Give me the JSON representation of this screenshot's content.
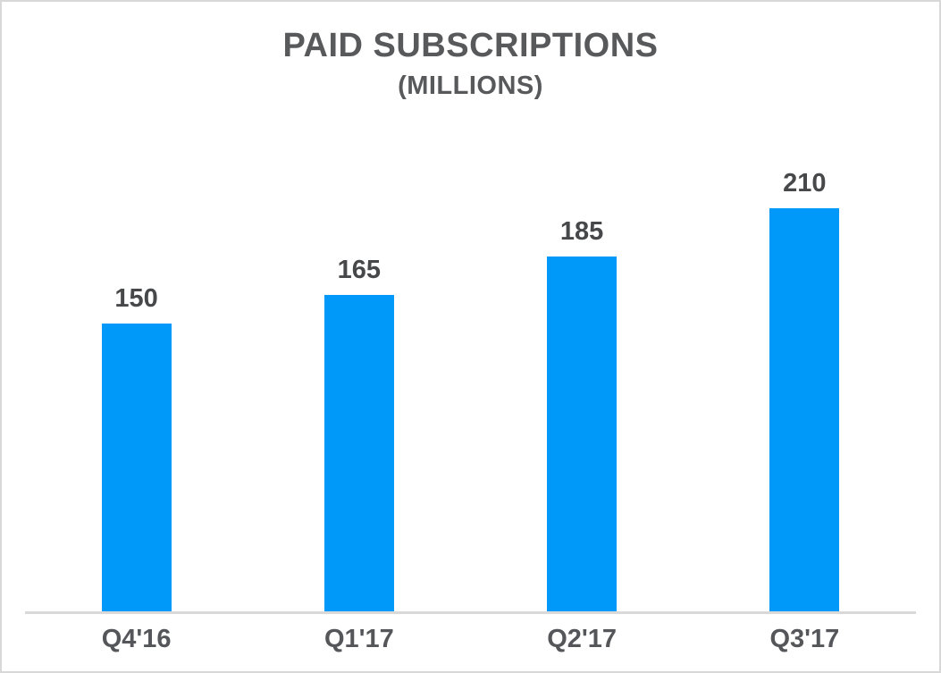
{
  "chart": {
    "title": "PAID SUBSCRIPTIONS",
    "subtitle": "(MILLIONS)"
  },
  "chart_data": {
    "type": "bar",
    "categories": [
      "Q4'16",
      "Q1'17",
      "Q2'17",
      "Q3'17"
    ],
    "values": [
      150,
      165,
      185,
      210
    ],
    "data_labels": [
      "150",
      "165",
      "185",
      "210"
    ],
    "title": "PAID SUBSCRIPTIONS",
    "subtitle": "(MILLIONS)",
    "xlabel": "",
    "ylabel": "",
    "ylim": [
      0,
      230
    ],
    "grid": false,
    "legend": false,
    "y_axis_visible": false,
    "x_axis_line": true
  },
  "colors": {
    "bar": "#0099fa",
    "title_text": "#58595b",
    "value_label_text": "#47484a",
    "x_label_text": "#55565a",
    "axis_line": "#d9d9d9",
    "frame_border": "#d8d8d8",
    "background": "#ffffff"
  }
}
